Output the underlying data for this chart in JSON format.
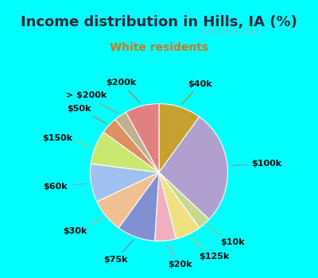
{
  "title": "Income distribution in Hills, IA (%)",
  "subtitle": "White residents",
  "watermark": "© City-Data.com",
  "title_color": "#2a2a3a",
  "subtitle_color": "#cc7722",
  "background_top": "#00FFFF",
  "background_chart": "#e0f0e8",
  "labels": [
    "$40k",
    "$100k",
    "$10k",
    "$125k",
    "$20k",
    "$75k",
    "$30k",
    "$60k",
    "$150k",
    "$50k",
    "> $200k",
    "$200k"
  ],
  "values": [
    10,
    27,
    3,
    6,
    5,
    9,
    8,
    9,
    8,
    4,
    3,
    8
  ],
  "colors": [
    "#c8a030",
    "#b0a0d0",
    "#c8d890",
    "#f0e080",
    "#f0b0c0",
    "#8090d0",
    "#f0c090",
    "#a0c0f0",
    "#c8e870",
    "#e09060",
    "#c0b090",
    "#e08080"
  ],
  "title_fontsize": 13,
  "subtitle_fontsize": 10,
  "label_fontsize": 8
}
